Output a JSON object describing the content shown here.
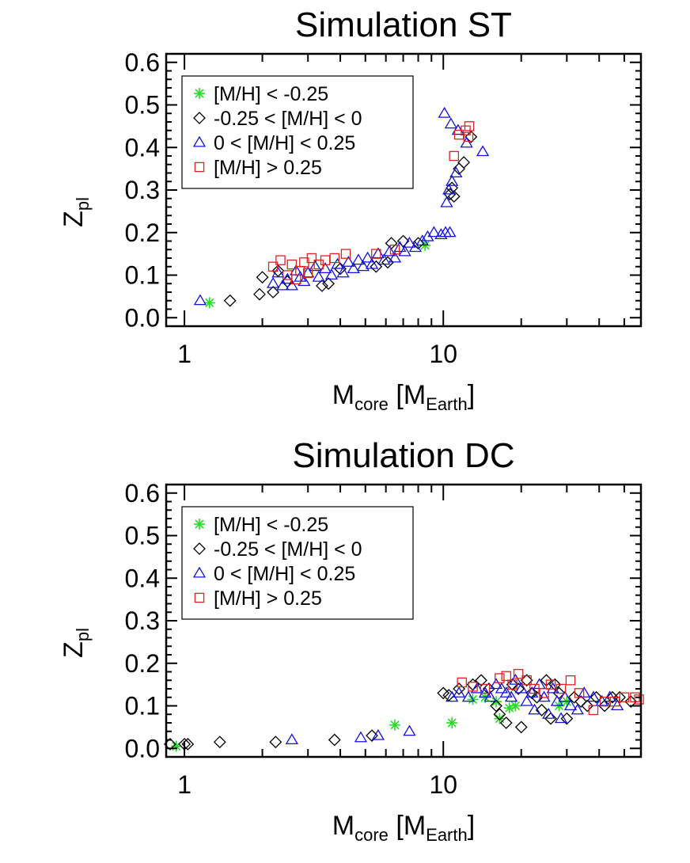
{
  "colors": {
    "metal_poor": "#22dd22",
    "sub_solar": "#000000",
    "super_solar": "#1111dd",
    "metal_rich": "#dd2222"
  },
  "chart_data": [
    {
      "type": "scatter",
      "title": "Simulation ST",
      "xlabel": {
        "main": "M",
        "main_sub": "core",
        "unit_open": " [M",
        "unit_sub": "Earth",
        "unit_close": "]"
      },
      "ylabel": {
        "main": "Z",
        "sub": "pl"
      },
      "xscale": "log",
      "xlim": [
        0.85,
        58
      ],
      "ylim": [
        -0.02,
        0.62
      ],
      "xticks": [
        {
          "v": 1,
          "label": "1"
        },
        {
          "v": 10,
          "label": "10"
        }
      ],
      "yticks": [
        {
          "v": 0.0,
          "label": "0.0"
        },
        {
          "v": 0.1,
          "label": "0.1"
        },
        {
          "v": 0.2,
          "label": "0.2"
        },
        {
          "v": 0.3,
          "label": "0.3"
        },
        {
          "v": 0.4,
          "label": "0.4"
        },
        {
          "v": 0.5,
          "label": "0.5"
        },
        {
          "v": 0.6,
          "label": "0.6"
        }
      ],
      "legend_position": "top-left",
      "series": [
        {
          "name": "[M/H] < -0.25",
          "marker": "asterisk",
          "color": "#22dd22",
          "points": [
            [
              1.25,
              0.035
            ],
            [
              8.5,
              0.17
            ]
          ]
        },
        {
          "name": "-0.25 < [M/H] < 0",
          "marker": "diamond",
          "color": "#000000",
          "points": [
            [
              1.5,
              0.04
            ],
            [
              1.95,
              0.055
            ],
            [
              2.0,
              0.095
            ],
            [
              2.2,
              0.06
            ],
            [
              2.3,
              0.11
            ],
            [
              2.5,
              0.085
            ],
            [
              3.4,
              0.075
            ],
            [
              3.6,
              0.08
            ],
            [
              4.0,
              0.115
            ],
            [
              5.5,
              0.12
            ],
            [
              6.1,
              0.13
            ],
            [
              6.3,
              0.175
            ],
            [
              7.0,
              0.18
            ],
            [
              8.0,
              0.175
            ],
            [
              10.6,
              0.29
            ],
            [
              10.8,
              0.305
            ],
            [
              11.0,
              0.285
            ],
            [
              11.5,
              0.35
            ],
            [
              12.0,
              0.365
            ],
            [
              12.8,
              0.425
            ]
          ]
        },
        {
          "name": "0 < [M/H] < 0.25",
          "marker": "triangle",
          "color": "#1111dd",
          "points": [
            [
              1.15,
              0.04
            ],
            [
              2.2,
              0.08
            ],
            [
              2.3,
              0.105
            ],
            [
              2.4,
              0.075
            ],
            [
              2.5,
              0.09
            ],
            [
              2.6,
              0.075
            ],
            [
              2.7,
              0.11
            ],
            [
              2.8,
              0.095
            ],
            [
              2.9,
              0.085
            ],
            [
              3.0,
              0.105
            ],
            [
              3.2,
              0.12
            ],
            [
              3.3,
              0.095
            ],
            [
              3.5,
              0.115
            ],
            [
              3.7,
              0.1
            ],
            [
              3.9,
              0.125
            ],
            [
              4.1,
              0.105
            ],
            [
              4.3,
              0.13
            ],
            [
              4.5,
              0.115
            ],
            [
              4.7,
              0.135
            ],
            [
              4.9,
              0.12
            ],
            [
              5.1,
              0.14
            ],
            [
              5.3,
              0.125
            ],
            [
              5.6,
              0.15
            ],
            [
              5.9,
              0.135
            ],
            [
              6.2,
              0.155
            ],
            [
              6.5,
              0.14
            ],
            [
              6.8,
              0.165
            ],
            [
              7.1,
              0.155
            ],
            [
              7.4,
              0.175
            ],
            [
              7.8,
              0.165
            ],
            [
              8.3,
              0.18
            ],
            [
              8.7,
              0.19
            ],
            [
              9.2,
              0.2
            ],
            [
              9.8,
              0.195
            ],
            [
              10.2,
              0.2
            ],
            [
              10.6,
              0.2
            ],
            [
              10.3,
              0.27
            ],
            [
              10.5,
              0.3
            ],
            [
              10.8,
              0.32
            ],
            [
              11.2,
              0.34
            ],
            [
              10.1,
              0.48
            ],
            [
              10.7,
              0.455
            ],
            [
              11.4,
              0.44
            ],
            [
              12.3,
              0.41
            ],
            [
              14.2,
              0.39
            ]
          ]
        },
        {
          "name": "[M/H] > 0.25",
          "marker": "square",
          "color": "#dd2222",
          "points": [
            [
              2.2,
              0.12
            ],
            [
              2.35,
              0.135
            ],
            [
              2.5,
              0.1
            ],
            [
              2.6,
              0.125
            ],
            [
              2.7,
              0.09
            ],
            [
              2.8,
              0.11
            ],
            [
              2.9,
              0.13
            ],
            [
              3.0,
              0.105
            ],
            [
              3.1,
              0.14
            ],
            [
              3.3,
              0.125
            ],
            [
              3.5,
              0.135
            ],
            [
              3.8,
              0.14
            ],
            [
              4.2,
              0.15
            ],
            [
              5.5,
              0.15
            ],
            [
              6.5,
              0.16
            ],
            [
              11.0,
              0.38
            ],
            [
              11.5,
              0.43
            ],
            [
              12.2,
              0.44
            ],
            [
              12.6,
              0.45
            ],
            [
              12.5,
              0.425
            ]
          ]
        }
      ]
    },
    {
      "type": "scatter",
      "title": "Simulation DC",
      "xlabel": {
        "main": "M",
        "main_sub": "core",
        "unit_open": " [M",
        "unit_sub": "Earth",
        "unit_close": "]"
      },
      "ylabel": {
        "main": "Z",
        "sub": "pl"
      },
      "xscale": "log",
      "xlim": [
        0.85,
        58
      ],
      "ylim": [
        -0.02,
        0.62
      ],
      "xticks": [
        {
          "v": 1,
          "label": "1"
        },
        {
          "v": 10,
          "label": "10"
        }
      ],
      "yticks": [
        {
          "v": 0.0,
          "label": "0.0"
        },
        {
          "v": 0.1,
          "label": "0.1"
        },
        {
          "v": 0.2,
          "label": "0.2"
        },
        {
          "v": 0.3,
          "label": "0.3"
        },
        {
          "v": 0.4,
          "label": "0.4"
        },
        {
          "v": 0.5,
          "label": "0.5"
        },
        {
          "v": 0.6,
          "label": "0.6"
        }
      ],
      "legend_position": "top-left",
      "series": [
        {
          "name": "[M/H] < -0.25",
          "marker": "asterisk",
          "color": "#22dd22",
          "points": [
            [
              0.93,
              0.005
            ],
            [
              6.5,
              0.055
            ],
            [
              10.8,
              0.06
            ],
            [
              13.0,
              0.115
            ],
            [
              14.5,
              0.12
            ],
            [
              16.0,
              0.11
            ],
            [
              16.5,
              0.07
            ],
            [
              18.0,
              0.095
            ],
            [
              19.0,
              0.1
            ],
            [
              28.0,
              0.1
            ],
            [
              30.0,
              0.11
            ]
          ]
        },
        {
          "name": "-0.25 < [M/H] < 0",
          "marker": "diamond",
          "color": "#000000",
          "points": [
            [
              0.88,
              0.01
            ],
            [
              1.0,
              0.01
            ],
            [
              1.03,
              0.01
            ],
            [
              1.37,
              0.015
            ],
            [
              2.25,
              0.015
            ],
            [
              3.8,
              0.02
            ],
            [
              5.3,
              0.03
            ],
            [
              10.0,
              0.13
            ],
            [
              10.5,
              0.125
            ],
            [
              11.5,
              0.14
            ],
            [
              13.0,
              0.15
            ],
            [
              14.0,
              0.16
            ],
            [
              15.0,
              0.14
            ],
            [
              16.0,
              0.1
            ],
            [
              16.5,
              0.08
            ],
            [
              17.5,
              0.06
            ],
            [
              18.5,
              0.15
            ],
            [
              19.5,
              0.14
            ],
            [
              20.0,
              0.05
            ],
            [
              21.0,
              0.16
            ],
            [
              22.0,
              0.13
            ],
            [
              23.0,
              0.12
            ],
            [
              24.0,
              0.09
            ],
            [
              25.0,
              0.16
            ],
            [
              26.0,
              0.07
            ],
            [
              27.0,
              0.15
            ],
            [
              28.0,
              0.13
            ],
            [
              30.0,
              0.07
            ],
            [
              32.0,
              0.12
            ],
            [
              34.0,
              0.11
            ],
            [
              36.0,
              0.1
            ],
            [
              39.0,
              0.12
            ],
            [
              42.0,
              0.1
            ],
            [
              45.0,
              0.12
            ],
            [
              48.0,
              0.12
            ],
            [
              53.0,
              0.11
            ]
          ]
        },
        {
          "name": "0 < [M/H] < 0.25",
          "marker": "triangle",
          "color": "#1111dd",
          "points": [
            [
              2.6,
              0.02
            ],
            [
              4.8,
              0.025
            ],
            [
              5.6,
              0.03
            ],
            [
              7.4,
              0.04
            ],
            [
              10.8,
              0.12
            ],
            [
              11.5,
              0.13
            ],
            [
              12.5,
              0.12
            ],
            [
              13.5,
              0.14
            ],
            [
              14.5,
              0.13
            ],
            [
              15.2,
              0.12
            ],
            [
              16.0,
              0.15
            ],
            [
              16.8,
              0.14
            ],
            [
              17.5,
              0.13
            ],
            [
              18.3,
              0.12
            ],
            [
              19.0,
              0.16
            ],
            [
              20.0,
              0.14
            ],
            [
              21.0,
              0.11
            ],
            [
              22.0,
              0.13
            ],
            [
              22.5,
              0.09
            ],
            [
              23.5,
              0.15
            ],
            [
              24.5,
              0.12
            ],
            [
              25.5,
              0.08
            ],
            [
              26.5,
              0.14
            ],
            [
              27.5,
              0.11
            ],
            [
              28.5,
              0.07
            ],
            [
              29.5,
              0.12
            ],
            [
              31.0,
              0.1
            ],
            [
              33.0,
              0.09
            ],
            [
              35.0,
              0.13
            ],
            [
              38.0,
              0.12
            ],
            [
              41.0,
              0.11
            ],
            [
              44.0,
              0.12
            ],
            [
              47.0,
              0.1
            ]
          ]
        },
        {
          "name": "[M/H] > 0.25",
          "marker": "square",
          "color": "#dd2222",
          "points": [
            [
              11.8,
              0.155
            ],
            [
              13.0,
              0.145
            ],
            [
              14.5,
              0.14
            ],
            [
              16.5,
              0.165
            ],
            [
              17.5,
              0.17
            ],
            [
              18.5,
              0.15
            ],
            [
              19.5,
              0.175
            ],
            [
              21.0,
              0.16
            ],
            [
              22.5,
              0.14
            ],
            [
              24.5,
              0.13
            ],
            [
              26.0,
              0.15
            ],
            [
              28.5,
              0.14
            ],
            [
              31.0,
              0.16
            ],
            [
              33.5,
              0.13
            ],
            [
              38.0,
              0.09
            ],
            [
              42.0,
              0.11
            ],
            [
              46.0,
              0.11
            ],
            [
              50.0,
              0.12
            ],
            [
              55.0,
              0.12
            ],
            [
              57.0,
              0.115
            ]
          ]
        }
      ]
    }
  ]
}
